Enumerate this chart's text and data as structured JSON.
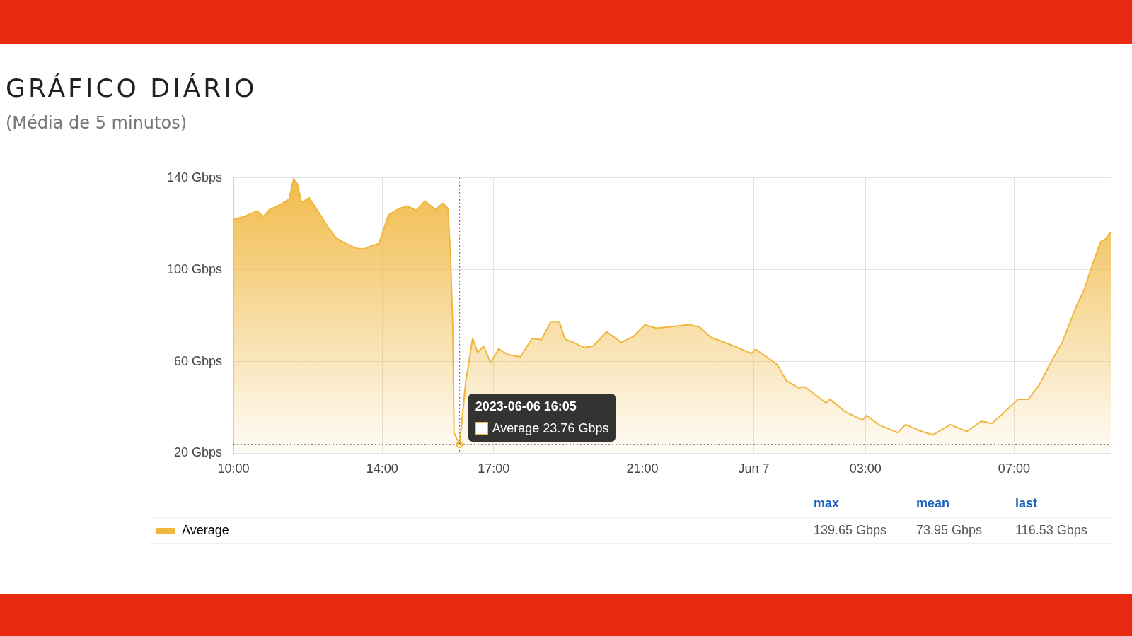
{
  "chart_data": {
    "type": "area",
    "title": "GRÁFICO DIÁRIO",
    "subtitle": "(Média de 5 minutos)",
    "x": [
      "2023-06-06T10:00",
      "2023-06-06T10:17",
      "2023-06-06T10:38",
      "2023-06-06T10:48",
      "2023-06-06T10:58",
      "2023-06-06T11:16",
      "2023-06-06T11:30",
      "2023-06-06T11:37",
      "2023-06-06T11:43",
      "2023-06-06T11:50",
      "2023-06-06T12:02",
      "2023-06-06T12:17",
      "2023-06-06T12:31",
      "2023-06-06T12:46",
      "2023-06-06T13:01",
      "2023-06-06T13:18",
      "2023-06-06T13:30",
      "2023-06-06T13:45",
      "2023-06-06T13:55",
      "2023-06-06T14:10",
      "2023-06-06T14:28",
      "2023-06-06T14:41",
      "2023-06-06T14:55",
      "2023-06-06T15:09",
      "2023-06-06T15:26",
      "2023-06-06T15:38",
      "2023-06-06T15:46",
      "2023-06-06T15:50",
      "2023-06-06T15:54",
      "2023-06-06T15:56",
      "2023-06-06T16:05",
      "2023-06-06T16:15",
      "2023-06-06T16:26",
      "2023-06-06T16:34",
      "2023-06-06T16:44",
      "2023-06-06T16:55",
      "2023-06-06T17:08",
      "2023-06-06T17:23",
      "2023-06-06T17:43",
      "2023-06-06T18:02",
      "2023-06-06T18:17",
      "2023-06-06T18:32",
      "2023-06-06T18:46",
      "2023-06-06T18:55",
      "2023-06-06T19:07",
      "2023-06-06T19:26",
      "2023-06-06T19:41",
      "2023-06-06T20:02",
      "2023-06-06T20:26",
      "2023-06-06T20:46",
      "2023-06-06T21:04",
      "2023-06-06T21:23",
      "2023-06-06T21:58",
      "2023-06-06T22:15",
      "2023-06-06T22:32",
      "2023-06-06T22:51",
      "2023-06-06T23:25",
      "2023-06-06T23:56",
      "2023-06-07T00:03",
      "2023-06-07T00:26",
      "2023-06-07T00:38",
      "2023-06-07T00:53",
      "2023-06-07T01:12",
      "2023-06-07T01:22",
      "2023-06-07T01:56",
      "2023-06-07T02:03",
      "2023-06-07T02:28",
      "2023-06-07T02:55",
      "2023-06-07T03:02",
      "2023-06-07T03:21",
      "2023-06-07T03:52",
      "2023-06-07T04:05",
      "2023-06-07T04:26",
      "2023-06-07T04:49",
      "2023-06-07T05:17",
      "2023-06-07T05:44",
      "2023-06-07T06:07",
      "2023-06-07T06:24",
      "2023-06-07T06:39",
      "2023-06-07T07:06",
      "2023-06-07T07:23",
      "2023-06-07T07:40",
      "2023-06-07T08:03",
      "2023-06-07T08:18",
      "2023-06-07T08:41",
      "2023-06-07T08:52",
      "2023-06-07T09:08",
      "2023-06-07T09:19",
      "2023-06-07T09:28",
      "2023-06-07T09:36"
    ],
    "series": [
      {
        "name": "Average",
        "color": "#f0b73f",
        "values": [
          121.9,
          123.2,
          125.6,
          123.2,
          126.2,
          128.4,
          130.8,
          139.6,
          137.5,
          129.3,
          131.4,
          125.3,
          119.2,
          113.7,
          111.5,
          109.4,
          109.1,
          110.6,
          111.5,
          123.8,
          126.8,
          127.7,
          125.9,
          129.9,
          126.2,
          129,
          126.8,
          108.5,
          74.8,
          28.9,
          23.76,
          51.5,
          70,
          64,
          66.7,
          59.5,
          65.5,
          63,
          62,
          70,
          69.5,
          77.3,
          77.3,
          69.7,
          68.5,
          66,
          66.8,
          73,
          68.3,
          71,
          76,
          74.5,
          75.5,
          76,
          75,
          70.5,
          67,
          63.5,
          65.3,
          61,
          58.5,
          51.5,
          48.5,
          49,
          42,
          43.5,
          38,
          34.5,
          36.5,
          32.5,
          29,
          32.5,
          30,
          28,
          32.5,
          29.5,
          34,
          33,
          36.5,
          43.5,
          43.5,
          49.5,
          61.5,
          68.5,
          84.5,
          90.5,
          103.5,
          112,
          113.5,
          116.5
        ]
      }
    ],
    "xlim": [
      "2023-06-06T10:00",
      "2023-06-07T09:36"
    ],
    "xticks": [
      {
        "value": "2023-06-06T10:00",
        "label": "10:00"
      },
      {
        "value": "2023-06-06T14:00",
        "label": "14:00"
      },
      {
        "value": "2023-06-06T17:00",
        "label": "17:00"
      },
      {
        "value": "2023-06-06T21:00",
        "label": "21:00"
      },
      {
        "value": "2023-06-07T00:00",
        "label": "Jun 7"
      },
      {
        "value": "2023-06-07T03:00",
        "label": "03:00"
      },
      {
        "value": "2023-06-07T07:00",
        "label": "07:00"
      }
    ],
    "ylim": [
      20,
      140
    ],
    "yticks": [
      {
        "value": 20,
        "label": "20 Gbps"
      },
      {
        "value": 60,
        "label": "60 Gbps"
      },
      {
        "value": 100,
        "label": "100 Gbps"
      },
      {
        "value": 140,
        "label": "140 Gbps"
      }
    ],
    "grid": true,
    "legend": "bottom",
    "marker": "none",
    "ref_lines": [
      {
        "axis": "x",
        "value": "2023-06-06T16:05",
        "color": "#555555",
        "line_style": "dotted"
      },
      {
        "axis": "y",
        "value": 23.76,
        "color": "#555555",
        "line_style": "dotted"
      }
    ],
    "annotations": [
      {
        "text": "2023-06-06 16:05",
        "x": "2023-06-06T16:05",
        "y": 23.76
      },
      {
        "text": "Average   23.76 Gbps",
        "x": "2023-06-06T16:05",
        "y": 23.76
      },
      "max",
      "mean",
      "last",
      "139.65 Gbps",
      "73.95 Gbps",
      "116.53 Gbps"
    ]
  }
}
